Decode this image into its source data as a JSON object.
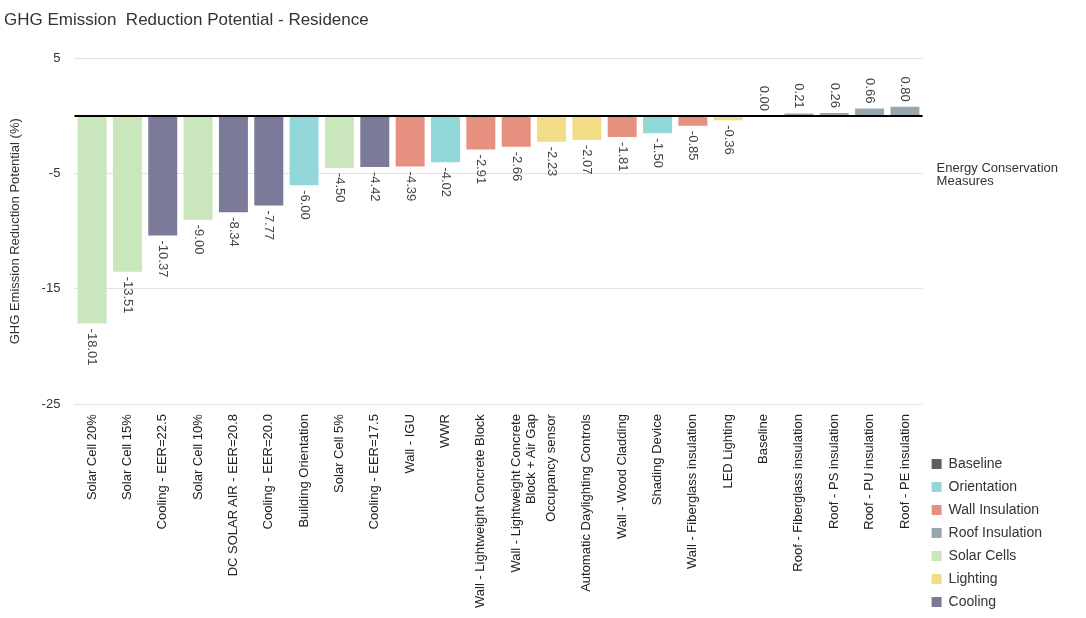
{
  "chart_data": {
    "type": "bar",
    "title": "GHG Emission  Reduction Potential - Residence",
    "xlabel": "Energy Conservation Measures",
    "ylabel": "GHG Emission Reduction Potential (%)",
    "categories": [
      "Solar Cell 20%",
      "Solar Cell 15%",
      "Cooling - EER=22.5",
      "Solar Cell 10%",
      "DC SOLAR AIR - EER=20.8",
      "Cooling - EER=20.0",
      "Building Orientation",
      "Solar Cell 5%",
      "Cooling - EER=17.5",
      "Wall - IGU",
      "WWR",
      "Wall - Lightweight Concrete Block",
      "Wall - Lightweight Concrete Block + Air Gap",
      "Occupancy sensor",
      "Automatic Daylighting Controls",
      "Wall - Wood Cladding",
      "Shading Device",
      "Wall - Fiberglass insulation",
      "LED Lighting",
      "Baseline",
      "Roof - Fiberglass insulation",
      "Roof - PS insulation",
      "Roof - PU insulation",
      "Roof - PE insulation"
    ],
    "series": [
      {
        "name": "Baseline",
        "color": "#5f5f62",
        "values": [
          null,
          null,
          null,
          null,
          null,
          null,
          null,
          null,
          null,
          null,
          null,
          null,
          null,
          null,
          null,
          null,
          null,
          null,
          null,
          0,
          null,
          null,
          null,
          null
        ],
        "value_labels": [
          null,
          null,
          null,
          null,
          null,
          null,
          null,
          null,
          null,
          null,
          null,
          null,
          null,
          null,
          null,
          null,
          null,
          null,
          null,
          "0.00",
          null,
          null,
          null,
          null
        ]
      },
      {
        "name": "Orientation",
        "color": "#93d8d8",
        "values": [
          null,
          null,
          null,
          null,
          null,
          null,
          -6.0,
          null,
          null,
          null,
          -4.02,
          null,
          null,
          null,
          null,
          null,
          -1.5,
          null,
          null,
          null,
          null,
          null,
          null,
          null
        ],
        "value_labels": [
          null,
          null,
          null,
          null,
          null,
          null,
          "-6.00",
          null,
          null,
          null,
          "-4.02",
          null,
          null,
          null,
          null,
          null,
          "-1.50",
          null,
          null,
          null,
          null,
          null,
          null,
          null
        ]
      },
      {
        "name": "Wall Insulation",
        "color": "#e8907f",
        "values": [
          null,
          null,
          null,
          null,
          null,
          null,
          null,
          null,
          null,
          -4.39,
          null,
          -2.91,
          -2.66,
          null,
          null,
          -1.81,
          null,
          -0.85,
          null,
          null,
          null,
          null,
          null,
          null
        ],
        "value_labels": [
          null,
          null,
          null,
          null,
          null,
          null,
          null,
          null,
          null,
          "-4.39",
          null,
          "-2.91",
          "-2.66",
          null,
          null,
          "-1.81",
          null,
          "-0.85",
          null,
          null,
          null,
          null,
          null,
          null
        ]
      },
      {
        "name": "Roof Insulation",
        "color": "#98a6b0",
        "values": [
          null,
          null,
          null,
          null,
          null,
          null,
          null,
          null,
          null,
          null,
          null,
          null,
          null,
          null,
          null,
          null,
          null,
          null,
          null,
          null,
          0.21,
          0.26,
          0.66,
          0.8
        ],
        "value_labels": [
          null,
          null,
          null,
          null,
          null,
          null,
          null,
          null,
          null,
          null,
          null,
          null,
          null,
          null,
          null,
          null,
          null,
          null,
          null,
          null,
          "0.21",
          "0.26",
          "0.66",
          "0.80"
        ]
      },
      {
        "name": "Solar Cells",
        "color": "#c9e6bd",
        "values": [
          -18.01,
          -13.51,
          null,
          -9.0,
          null,
          null,
          null,
          -4.5,
          null,
          null,
          null,
          null,
          null,
          null,
          null,
          null,
          null,
          null,
          null,
          null,
          null,
          null,
          null,
          null
        ],
        "value_labels": [
          "-18.01",
          "-13.51",
          null,
          "-9.00",
          null,
          null,
          null,
          "-4.50",
          null,
          null,
          null,
          null,
          null,
          null,
          null,
          null,
          null,
          null,
          null,
          null,
          null,
          null,
          null,
          null
        ]
      },
      {
        "name": "Lighting",
        "color": "#f2dc86",
        "values": [
          null,
          null,
          null,
          null,
          null,
          null,
          null,
          null,
          null,
          null,
          null,
          null,
          null,
          -2.23,
          -2.07,
          null,
          null,
          null,
          -0.36,
          null,
          null,
          null,
          null,
          null
        ],
        "value_labels": [
          null,
          null,
          null,
          null,
          null,
          null,
          null,
          null,
          null,
          null,
          null,
          null,
          null,
          "-2.23",
          "-2.07",
          null,
          null,
          null,
          "-0.36",
          null,
          null,
          null,
          null,
          null
        ]
      },
      {
        "name": "Cooling",
        "color": "#7b7b99",
        "values": [
          null,
          null,
          -10.37,
          null,
          -8.34,
          -7.77,
          null,
          null,
          -4.42,
          null,
          null,
          null,
          null,
          null,
          null,
          null,
          null,
          null,
          null,
          null,
          null,
          null,
          null,
          null
        ],
        "value_labels": [
          null,
          null,
          "-10.37",
          null,
          "-8.34",
          "-7.77",
          null,
          null,
          "-4.42",
          null,
          null,
          null,
          null,
          null,
          null,
          null,
          null,
          null,
          null,
          null,
          null,
          null,
          null,
          null
        ]
      }
    ],
    "ylim": [
      -25,
      5
    ],
    "yticks": [
      5,
      -5,
      -15,
      -25
    ],
    "grid": "y",
    "legend": "bottom right"
  }
}
